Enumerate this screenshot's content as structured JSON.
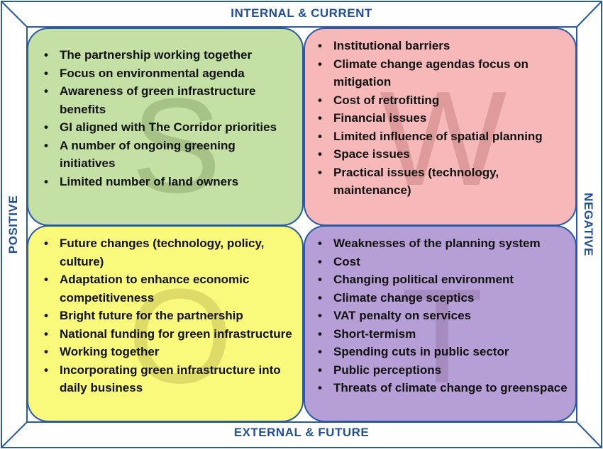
{
  "labels": {
    "top": "INTERNAL & CURRENT",
    "bottom": "EXTERNAL & FUTURE",
    "left": "POSITIVE",
    "right": "NEGATIVE"
  },
  "colors": {
    "strengths": "#c5e0a4",
    "weaknesses": "#f6b8b8",
    "opportunities": "#f9f97c",
    "threats": "#b59fd6",
    "frame": "#2a5aa6",
    "label": "#1f4e9a"
  },
  "quadrants": {
    "strengths": {
      "letter": "S",
      "items": [
        "The partnership working together",
        "Focus on environmental agenda",
        "Awareness of green infrastructure benefits",
        "GI aligned with The Corridor priorities",
        "A number of ongoing greening initiatives",
        "Limited number of land owners"
      ]
    },
    "weaknesses": {
      "letter": "W",
      "items": [
        "Institutional barriers",
        "Climate change agendas focus on mitigation",
        "Cost of retrofitting",
        "Financial issues",
        "Limited influence of spatial planning",
        "Space issues",
        "Practical issues (technology, maintenance)"
      ]
    },
    "opportunities": {
      "letter": "O",
      "items": [
        "Future changes (technology, policy, culture)",
        "Adaptation to enhance economic competitiveness",
        "Bright future for the partnership",
        "National funding for green infrastructure",
        "Working together",
        "Incorporating green infrastructure into daily business"
      ]
    },
    "threats": {
      "letter": "T",
      "items": [
        "Weaknesses of the planning system",
        "Cost",
        "Changing political environment",
        "Climate change sceptics",
        "VAT penalty on services",
        "Short-termism",
        "Spending cuts in public sector",
        "Public perceptions",
        "Threats of climate change to greenspace"
      ]
    }
  }
}
